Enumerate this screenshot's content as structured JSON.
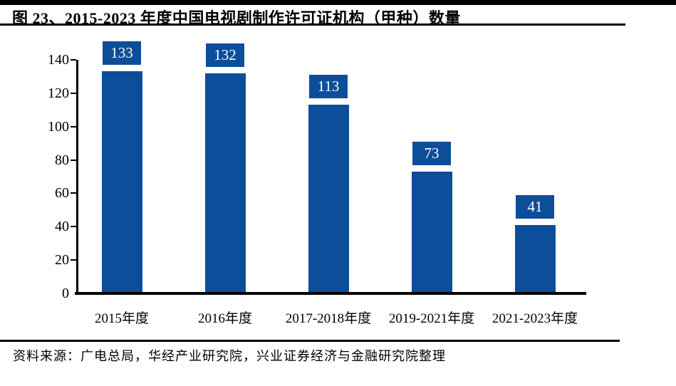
{
  "header": {
    "title": "图 23、2015-2023 年度中国电视剧制作许可证机构（甲种）数量"
  },
  "chart_data": {
    "type": "bar",
    "title": "2015-2023 年度中国电视剧制作许可证机构（甲种）数量",
    "categories": [
      "2015年度",
      "2016年度",
      "2017-2018年度",
      "2019-2021年度",
      "2021-2023年度"
    ],
    "values": [
      133,
      132,
      113,
      73,
      41
    ],
    "xlabel": "",
    "ylabel": "",
    "ylim": [
      0,
      140
    ],
    "yticks": [
      0,
      20,
      40,
      60,
      80,
      100,
      120,
      140
    ],
    "grid": false,
    "legend": false,
    "data_labels": "boxed above bars",
    "colors": {
      "bar": "#0d4e9b",
      "value_badge_bg": "#0d4e9b",
      "value_badge_text": "#ffffff",
      "axis": "#000000"
    }
  },
  "footer": {
    "source": "资料来源：广电总局，华经产业研究院，兴业证券经济与金融研究院整理"
  }
}
